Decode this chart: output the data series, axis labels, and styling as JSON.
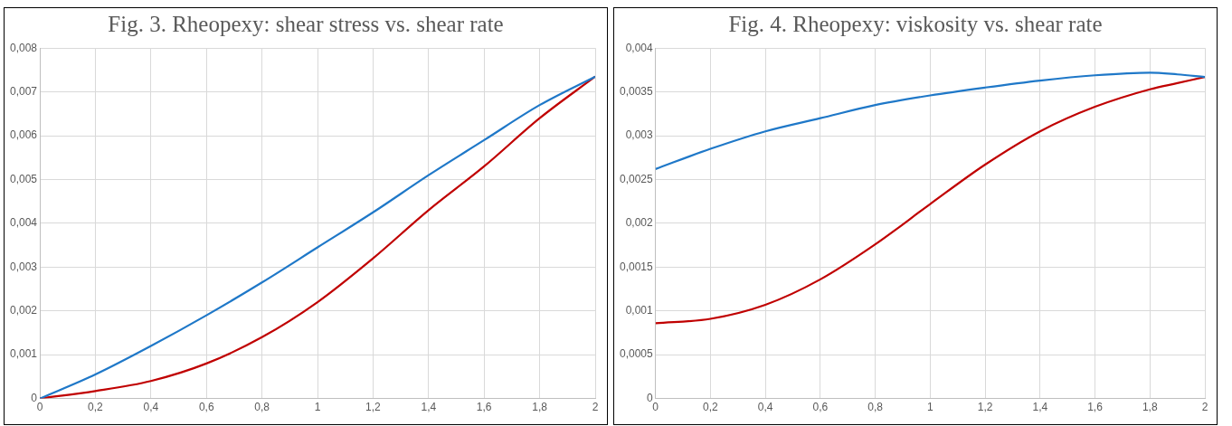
{
  "chart_data": [
    {
      "type": "line",
      "title": "Fig. 3. Rheopexy: shear stress vs. shear rate",
      "x": [
        0,
        0.2,
        0.4,
        0.6,
        0.8,
        1,
        1.2,
        1.4,
        1.6,
        1.8,
        2
      ],
      "series": [
        {
          "color": "#1f78c8",
          "values": [
            0,
            0.00055,
            0.0012,
            0.0019,
            0.00265,
            0.00345,
            0.00425,
            0.0051,
            0.0059,
            0.0067,
            0.00735
          ]
        },
        {
          "color": "#c00000",
          "values": [
            0,
            0.00017,
            0.0004,
            0.0008,
            0.0014,
            0.0022,
            0.0032,
            0.0043,
            0.0053,
            0.0064,
            0.00735
          ]
        }
      ],
      "xlim": [
        0,
        2
      ],
      "xticks": [
        0,
        {
          "value": 0.2,
          "label": "0,2"
        },
        {
          "value": 0.4,
          "label": "0,4"
        },
        {
          "value": 0.6,
          "label": "0,6"
        },
        {
          "value": 0.8,
          "label": "0,8"
        },
        1,
        {
          "value": 1.2,
          "label": "1,2"
        },
        {
          "value": 1.4,
          "label": "1,4"
        },
        {
          "value": 1.6,
          "label": "1,6"
        },
        {
          "value": 1.8,
          "label": "1,8"
        },
        2
      ],
      "ylim": [
        0,
        0.008
      ],
      "yticks": [
        0,
        {
          "value": 0.001,
          "label": "0,001"
        },
        {
          "value": 0.002,
          "label": "0,002"
        },
        {
          "value": 0.003,
          "label": "0,003"
        },
        {
          "value": 0.004,
          "label": "0,004"
        },
        {
          "value": 0.005,
          "label": "0,005"
        },
        {
          "value": 0.006,
          "label": "0,006"
        },
        {
          "value": 0.007,
          "label": "0,007"
        },
        {
          "value": 0.008,
          "label": "0,008"
        }
      ],
      "grid": true,
      "legend": false,
      "marker": "none"
    },
    {
      "type": "line",
      "title": "Fig. 4. Rheopexy: viskosity vs. shear rate",
      "x": [
        0,
        0.2,
        0.4,
        0.6,
        0.8,
        1,
        1.2,
        1.4,
        1.6,
        1.8,
        1.9,
        2
      ],
      "series": [
        {
          "color": "#1f78c8",
          "values": [
            0.00262,
            0.00285,
            0.00305,
            0.0032,
            0.00335,
            0.00346,
            0.00355,
            0.00363,
            0.00369,
            0.00372,
            0.0037,
            0.00367
          ]
        },
        {
          "color": "#c00000",
          "values": [
            0.00086,
            0.00091,
            0.00107,
            0.00136,
            0.00176,
            0.00222,
            0.00267,
            0.00305,
            0.00333,
            0.00353,
            0.0036,
            0.00367
          ]
        }
      ],
      "xlim": [
        0,
        2
      ],
      "xticks": [
        0,
        {
          "value": 0.2,
          "label": "0,2"
        },
        {
          "value": 0.4,
          "label": "0,4"
        },
        {
          "value": 0.6,
          "label": "0,6"
        },
        {
          "value": 0.8,
          "label": "0,8"
        },
        1,
        {
          "value": 1.2,
          "label": "1,2"
        },
        {
          "value": 1.4,
          "label": "1,4"
        },
        {
          "value": 1.6,
          "label": "1,6"
        },
        {
          "value": 1.8,
          "label": "1,8"
        },
        2
      ],
      "ylim": [
        0,
        0.004
      ],
      "yticks": [
        0,
        {
          "value": 0.0005,
          "label": "0,0005"
        },
        {
          "value": 0.001,
          "label": "0,001"
        },
        {
          "value": 0.0015,
          "label": "0,0015"
        },
        {
          "value": 0.002,
          "label": "0,002"
        },
        {
          "value": 0.0025,
          "label": "0,0025"
        },
        {
          "value": 0.003,
          "label": "0,003"
        },
        {
          "value": 0.0035,
          "label": "0,0035"
        },
        {
          "value": 0.004,
          "label": "0,004"
        }
      ],
      "grid": true,
      "legend": false,
      "marker": "none"
    }
  ]
}
